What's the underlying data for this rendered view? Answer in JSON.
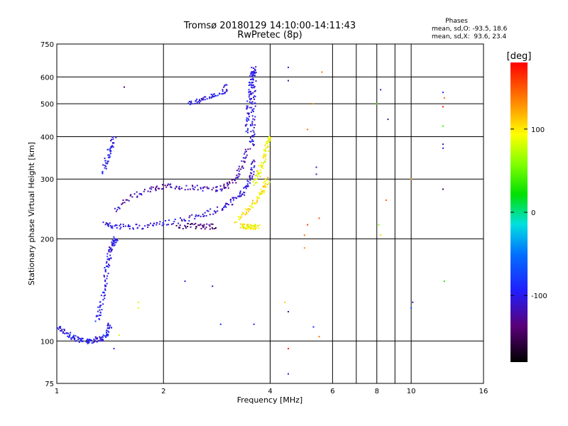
{
  "chart_data": {
    "type": "scatter",
    "title": "Tromsø 20180129 14:10:00-14:11:43",
    "subtitle": "RwPretec (8p)",
    "xlabel": "Frequency [MHz]",
    "ylabel": "Stationary phase Virtual Height [km]",
    "x_scale": "log",
    "y_scale": "log",
    "xlim": [
      1,
      16
    ],
    "ylim": [
      75,
      750
    ],
    "x_ticks": [
      1,
      2,
      4,
      6,
      8,
      10,
      16
    ],
    "x_tick_labels": [
      "1",
      "2",
      "4",
      "6",
      "8",
      "10",
      "16"
    ],
    "y_ticks": [
      75,
      100,
      200,
      300,
      400,
      500,
      600,
      750
    ],
    "y_tick_labels": [
      "75",
      "100",
      "200",
      "300",
      "400",
      "500",
      "600",
      "750"
    ],
    "grid": true,
    "info": {
      "heading": "Phases",
      "line1": "mean, sd,O: -93.5, 18.6",
      "line2": "mean, sd,X:  93.6, 23.4"
    },
    "colorbar": {
      "label": "[deg]",
      "range": [
        -180,
        180
      ],
      "ticks": [
        100,
        0,
        -100
      ],
      "tick_labels": [
        "100",
        "0",
        "-100"
      ],
      "colormap": "rainbow"
    },
    "traces": [
      {
        "x": [
          1.0,
          1.05,
          1.1,
          1.15,
          1.2,
          1.25,
          1.3,
          1.35,
          1.4,
          1.42
        ],
        "y": [
          110,
          106,
          103,
          101,
          100,
          100,
          101,
          102,
          106,
          112
        ],
        "phase": -100
      },
      {
        "x": [
          1.3,
          1.33,
          1.36,
          1.38,
          1.4,
          1.42,
          1.45,
          1.47
        ],
        "y": [
          115,
          125,
          140,
          158,
          175,
          188,
          196,
          200
        ],
        "phase": -100
      },
      {
        "x": [
          1.36,
          1.45,
          1.6,
          1.8,
          2.0,
          2.3,
          2.6,
          2.9,
          3.1,
          3.3,
          3.45,
          3.55,
          3.6
        ],
        "y": [
          220,
          218,
          217,
          218,
          222,
          228,
          236,
          246,
          256,
          268,
          285,
          310,
          340
        ],
        "phase": -105
      },
      {
        "x": [
          3.55,
          3.57,
          3.58,
          3.59,
          3.6,
          3.61
        ],
        "y": [
          370,
          410,
          460,
          520,
          590,
          640
        ],
        "phase": -105
      },
      {
        "x": [
          1.45,
          1.6,
          1.8,
          2.0,
          2.2,
          2.5,
          2.8,
          3.0,
          3.2,
          3.35,
          3.42
        ],
        "y": [
          240,
          265,
          280,
          285,
          285,
          282,
          280,
          285,
          300,
          330,
          370
        ],
        "phase": -120
      },
      {
        "x": [
          3.42,
          3.46,
          3.5,
          3.52,
          3.55,
          3.58
        ],
        "y": [
          410,
          460,
          520,
          560,
          600,
          630
        ],
        "phase": -100
      },
      {
        "x": [
          1.35,
          1.38,
          1.42,
          1.46
        ],
        "y": [
          315,
          340,
          370,
          400
        ],
        "phase": -100
      },
      {
        "x": [
          2.35,
          2.5,
          2.7,
          2.9,
          3.05
        ],
        "y": [
          505,
          510,
          520,
          540,
          565
        ],
        "phase": -100
      },
      {
        "x": [
          3.2,
          3.4,
          3.6,
          3.75,
          3.85,
          3.95
        ],
        "y": [
          225,
          240,
          255,
          270,
          285,
          300
        ],
        "phase": 100
      },
      {
        "x": [
          3.6,
          3.7,
          3.8,
          3.88,
          3.95,
          4.0
        ],
        "y": [
          290,
          310,
          330,
          355,
          380,
          400
        ],
        "phase": 90
      },
      {
        "x": [
          3.3,
          3.4,
          3.5,
          3.6,
          3.7
        ],
        "y": [
          218,
          218,
          217,
          217,
          218
        ],
        "phase": 95
      },
      {
        "x": [
          2.2,
          2.4,
          2.6,
          2.8
        ],
        "y": [
          218,
          218,
          218,
          217
        ],
        "phase": -140
      }
    ],
    "points": [
      {
        "x": 4.5,
        "y": 640,
        "phase": -110
      },
      {
        "x": 4.5,
        "y": 585,
        "phase": -120
      },
      {
        "x": 5.6,
        "y": 620,
        "phase": 140
      },
      {
        "x": 5.3,
        "y": 500,
        "phase": 130
      },
      {
        "x": 5.1,
        "y": 420,
        "phase": 140
      },
      {
        "x": 5.4,
        "y": 325,
        "phase": -110
      },
      {
        "x": 5.4,
        "y": 310,
        "phase": -110
      },
      {
        "x": 5.5,
        "y": 230,
        "phase": 150
      },
      {
        "x": 5.1,
        "y": 220,
        "phase": 160
      },
      {
        "x": 5.0,
        "y": 205,
        "phase": 140
      },
      {
        "x": 5.0,
        "y": 188,
        "phase": 130
      },
      {
        "x": 5.3,
        "y": 110,
        "phase": -90
      },
      {
        "x": 5.5,
        "y": 103,
        "phase": 140
      },
      {
        "x": 4.4,
        "y": 130,
        "phase": 110
      },
      {
        "x": 4.5,
        "y": 122,
        "phase": -120
      },
      {
        "x": 4.5,
        "y": 95,
        "phase": 170
      },
      {
        "x": 4.5,
        "y": 80,
        "phase": -100
      },
      {
        "x": 8.2,
        "y": 550,
        "phase": -100
      },
      {
        "x": 8.6,
        "y": 450,
        "phase": -120
      },
      {
        "x": 8.0,
        "y": 500,
        "phase": 40
      },
      {
        "x": 8.5,
        "y": 260,
        "phase": 150
      },
      {
        "x": 8.1,
        "y": 220,
        "phase": 60
      },
      {
        "x": 8.2,
        "y": 205,
        "phase": 110
      },
      {
        "x": 10.1,
        "y": 130,
        "phase": -110
      },
      {
        "x": 10.0,
        "y": 125,
        "phase": -60
      },
      {
        "x": 10.0,
        "y": 300,
        "phase": 120
      },
      {
        "x": 12.3,
        "y": 540,
        "phase": -90
      },
      {
        "x": 12.4,
        "y": 520,
        "phase": 140
      },
      {
        "x": 12.3,
        "y": 490,
        "phase": 170
      },
      {
        "x": 12.3,
        "y": 430,
        "phase": 40
      },
      {
        "x": 12.3,
        "y": 380,
        "phase": -120
      },
      {
        "x": 12.3,
        "y": 370,
        "phase": -110
      },
      {
        "x": 12.3,
        "y": 280,
        "phase": -140
      },
      {
        "x": 12.4,
        "y": 150,
        "phase": 30
      },
      {
        "x": 1.55,
        "y": 560,
        "phase": -130
      },
      {
        "x": 1.7,
        "y": 130,
        "phase": 80
      },
      {
        "x": 1.7,
        "y": 125,
        "phase": 90
      },
      {
        "x": 1.5,
        "y": 104,
        "phase": 80
      },
      {
        "x": 1.45,
        "y": 95,
        "phase": -100
      },
      {
        "x": 2.3,
        "y": 150,
        "phase": -110
      },
      {
        "x": 2.75,
        "y": 145,
        "phase": -120
      },
      {
        "x": 2.9,
        "y": 112,
        "phase": -90
      },
      {
        "x": 3.6,
        "y": 112,
        "phase": -100
      }
    ]
  }
}
